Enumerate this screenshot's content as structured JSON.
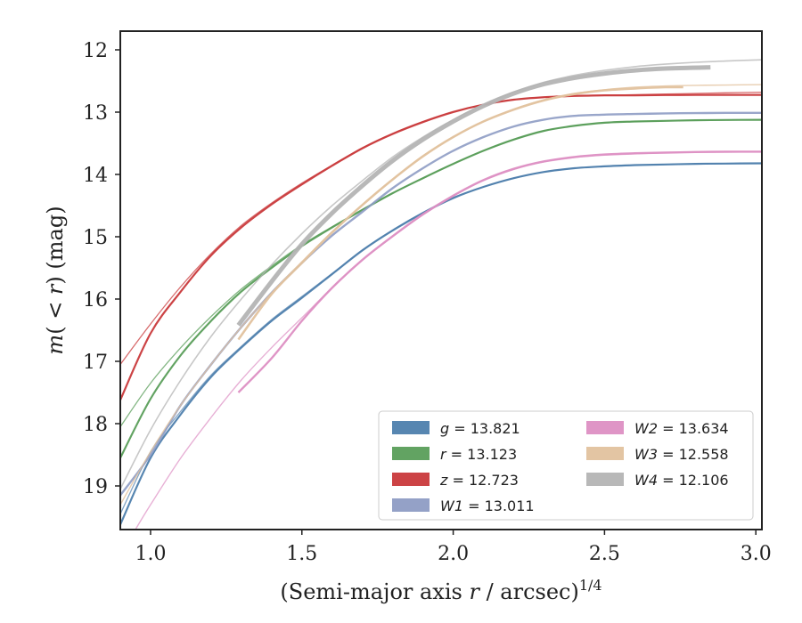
{
  "chart_data": {
    "type": "line",
    "xlabel": "(Semi-major axis r / arcsec)^{1/4}",
    "ylabel": "m(< r) (mag)",
    "xlim": [
      0.9,
      3.02
    ],
    "ylim": [
      19.7,
      11.7
    ],
    "y_inverted": true,
    "xticks": [
      "1.0",
      "1.5",
      "2.0",
      "2.5",
      "3.0"
    ],
    "yticks": [
      "12",
      "13",
      "14",
      "15",
      "16",
      "17",
      "18",
      "19"
    ],
    "legend_position": "lower-right",
    "series": [
      {
        "name": "g = 13.821",
        "legend_label": {
          "var": "g",
          "value": "13.821"
        },
        "color": "#4e7fad",
        "total": 13.821,
        "curves": [
          {
            "x": [
              0.9,
              1.0,
              1.1,
              1.2,
              1.3,
              1.4,
              1.5,
              1.6,
              1.7,
              1.8,
              1.9,
              2.0,
              2.1,
              2.2,
              2.3,
              2.4,
              2.5,
              2.6,
              2.7,
              2.8,
              2.9,
              3.02
            ],
            "y": [
              19.62,
              18.55,
              17.85,
              17.25,
              16.78,
              16.35,
              15.98,
              15.6,
              15.22,
              14.9,
              14.62,
              14.38,
              14.2,
              14.06,
              13.96,
              13.9,
              13.87,
              13.85,
              13.84,
              13.83,
              13.825,
              13.821
            ],
            "width": 2.2,
            "opacity": 0.95
          },
          {
            "x": [
              0.9,
              1.0,
              1.1,
              1.2,
              1.3,
              1.4,
              1.5,
              1.6,
              1.7,
              1.8,
              1.9,
              2.0,
              2.1,
              2.2,
              2.3,
              2.4,
              2.5,
              2.6,
              2.7,
              2.8,
              2.9,
              3.02
            ],
            "y": [
              19.45,
              18.45,
              17.8,
              17.22,
              16.76,
              16.33,
              15.96,
              15.59,
              15.21,
              14.89,
              14.61,
              14.37,
              14.2,
              14.06,
              13.96,
              13.9,
              13.87,
              13.85,
              13.84,
              13.83,
              13.825,
              13.821
            ],
            "width": 1.3,
            "opacity": 0.7
          }
        ]
      },
      {
        "name": "r = 13.123",
        "legend_label": {
          "var": "r",
          "value": "13.123"
        },
        "color": "#5a9e5a",
        "total": 13.123,
        "curves": [
          {
            "x": [
              0.9,
              1.0,
              1.1,
              1.2,
              1.3,
              1.4,
              1.5,
              1.6,
              1.7,
              1.8,
              1.9,
              2.0,
              2.1,
              2.2,
              2.3,
              2.4,
              2.5,
              2.6,
              2.7,
              2.8,
              2.9,
              3.02
            ],
            "y": [
              18.55,
              17.6,
              16.9,
              16.35,
              15.88,
              15.5,
              15.15,
              14.85,
              14.57,
              14.3,
              14.06,
              13.83,
              13.62,
              13.44,
              13.3,
              13.22,
              13.17,
              13.15,
              13.14,
              13.13,
              13.125,
              13.123
            ],
            "width": 2.2,
            "opacity": 0.95
          },
          {
            "x": [
              0.9,
              1.0,
              1.1,
              1.2,
              1.3,
              1.4,
              1.5,
              1.6,
              1.7,
              1.8,
              1.9,
              2.0,
              2.1,
              2.2,
              2.3,
              2.4,
              2.5,
              2.6,
              2.7,
              2.8,
              2.9,
              3.02
            ],
            "y": [
              18.05,
              17.35,
              16.78,
              16.28,
              15.84,
              15.47,
              15.13,
              14.84,
              14.56,
              14.3,
              14.06,
              13.83,
              13.62,
              13.44,
              13.3,
              13.22,
              13.17,
              13.15,
              13.14,
              13.13,
              13.125,
              13.123
            ],
            "width": 1.3,
            "opacity": 0.75
          }
        ]
      },
      {
        "name": "z = 12.723",
        "legend_label": {
          "var": "z",
          "value": "12.723"
        },
        "color": "#c9393b",
        "total": 12.723,
        "curves": [
          {
            "x": [
              0.9,
              1.0,
              1.1,
              1.2,
              1.3,
              1.4,
              1.5,
              1.6,
              1.7,
              1.8,
              1.9,
              2.0,
              2.1,
              2.2,
              2.3,
              2.4,
              2.5,
              2.6,
              2.7,
              2.8,
              2.9,
              3.02
            ],
            "y": [
              17.62,
              16.55,
              15.88,
              15.3,
              14.85,
              14.48,
              14.16,
              13.86,
              13.58,
              13.35,
              13.16,
              13.0,
              12.88,
              12.8,
              12.76,
              12.74,
              12.73,
              12.73,
              12.725,
              12.724,
              12.723,
              12.723
            ],
            "width": 2.2,
            "opacity": 0.95
          },
          {
            "x": [
              0.9,
              1.0,
              1.1,
              1.2,
              1.3,
              1.4,
              1.5,
              1.6,
              1.7,
              1.8,
              1.9,
              2.0,
              2.1,
              2.2,
              2.3,
              2.4,
              2.5,
              2.6,
              2.7,
              2.8,
              2.9,
              3.02
            ],
            "y": [
              17.05,
              16.4,
              15.8,
              15.27,
              14.82,
              14.46,
              14.14,
              13.85,
              13.57,
              13.34,
              13.15,
              12.99,
              12.88,
              12.8,
              12.76,
              12.74,
              12.73,
              12.72,
              12.71,
              12.7,
              12.69,
              12.68
            ],
            "width": 1.3,
            "opacity": 0.75
          }
        ]
      },
      {
        "name": "W1 = 13.011",
        "legend_label": {
          "var": "W1",
          "value": "13.011"
        },
        "color": "#8e9cc4",
        "total": 13.011,
        "curves": [
          {
            "x": [
              0.9,
              1.0,
              1.1,
              1.2,
              1.3,
              1.4,
              1.5,
              1.6,
              1.7,
              1.8,
              1.9,
              2.0,
              2.1,
              2.2,
              2.3,
              2.4,
              2.5,
              2.6,
              2.7,
              2.8,
              2.9,
              3.02
            ],
            "y": [
              19.15,
              18.5,
              17.7,
              17.05,
              16.45,
              15.9,
              15.42,
              14.98,
              14.6,
              14.22,
              13.9,
              13.62,
              13.4,
              13.23,
              13.12,
              13.06,
              13.04,
              13.03,
              13.02,
              13.015,
              13.012,
              13.011
            ],
            "width": 2.4,
            "opacity": 0.9
          }
        ]
      },
      {
        "name": "W2 = 13.634",
        "legend_label": {
          "var": "W2",
          "value": "13.634"
        },
        "color": "#dd8fc3",
        "total": 13.634,
        "curves": [
          {
            "x": [
              0.95,
              1.0,
              1.1,
              1.2,
              1.3,
              1.4,
              1.5,
              1.6,
              1.7,
              1.8,
              1.9,
              2.0,
              2.1,
              2.2,
              2.3,
              2.4,
              2.5,
              2.6,
              2.7,
              2.8,
              2.9,
              3.02
            ],
            "y": [
              19.7,
              19.3,
              18.55,
              17.9,
              17.3,
              16.78,
              16.3,
              15.82,
              15.38,
              15.0,
              14.65,
              14.35,
              14.1,
              13.92,
              13.8,
              13.73,
              13.69,
              13.67,
              13.65,
              13.64,
              13.635,
              13.634
            ],
            "width": 1.4,
            "opacity": 0.7
          },
          {
            "x": [
              1.29,
              1.4,
              1.5,
              1.6,
              1.7,
              1.8,
              1.9,
              2.0,
              2.1,
              2.2,
              2.3,
              2.4,
              2.5,
              2.6,
              2.7,
              2.8,
              2.9,
              3.02
            ],
            "y": [
              17.5,
              16.95,
              16.35,
              15.82,
              15.37,
              14.99,
              14.64,
              14.34,
              14.09,
              13.91,
              13.79,
              13.72,
              13.68,
              13.66,
              13.65,
              13.64,
              13.635,
              13.634
            ],
            "width": 2.4,
            "opacity": 0.95
          }
        ]
      },
      {
        "name": "W3 = 12.558",
        "legend_label": {
          "var": "W3",
          "value": "12.558"
        },
        "color": "#e2c29e",
        "total": 12.558,
        "curves": [
          {
            "x": [
              0.9,
              1.0,
              1.1,
              1.2,
              1.3,
              1.4,
              1.5,
              1.6,
              1.7,
              1.8,
              1.9,
              2.0,
              2.1,
              2.2,
              2.3,
              2.4,
              2.5,
              2.6,
              2.7,
              2.8,
              2.9,
              3.02
            ],
            "y": [
              19.3,
              18.45,
              17.7,
              17.05,
              16.45,
              15.9,
              15.4,
              14.92,
              14.48,
              14.08,
              13.7,
              13.4,
              13.15,
              12.95,
              12.8,
              12.7,
              12.64,
              12.6,
              12.58,
              12.57,
              12.565,
              12.558
            ],
            "width": 1.4,
            "opacity": 0.8
          },
          {
            "x": [
              1.29,
              1.4,
              1.5,
              1.6,
              1.7,
              1.8,
              1.9,
              2.0,
              2.1,
              2.2,
              2.3,
              2.4,
              2.5,
              2.6,
              2.7,
              2.76
            ],
            "y": [
              16.65,
              15.92,
              15.42,
              14.93,
              14.49,
              14.08,
              13.71,
              13.4,
              13.15,
              12.96,
              12.81,
              12.71,
              12.65,
              12.62,
              12.6,
              12.6
            ],
            "width": 2.6,
            "opacity": 0.95
          }
        ]
      },
      {
        "name": "W4 = 12.106",
        "legend_label": {
          "var": "W4",
          "value": "12.106"
        },
        "color": "#b4b4b4",
        "total": 12.106,
        "curves": [
          {
            "x": [
              0.9,
              1.0,
              1.1,
              1.2,
              1.3,
              1.4,
              1.5,
              1.6,
              1.7,
              1.8,
              1.9,
              2.0,
              2.1,
              2.2,
              2.3,
              2.4,
              2.5,
              2.6,
              2.7,
              2.8,
              2.9,
              3.02
            ],
            "y": [
              19.05,
              18.1,
              17.3,
              16.6,
              16.0,
              15.45,
              14.95,
              14.5,
              14.1,
              13.72,
              13.4,
              13.12,
              12.88,
              12.68,
              12.52,
              12.41,
              12.33,
              12.27,
              12.23,
              12.2,
              12.18,
              12.16
            ],
            "width": 1.6,
            "opacity": 0.75
          },
          {
            "x": [
              1.29,
              1.4,
              1.5,
              1.6,
              1.7,
              1.8,
              1.9,
              2.0,
              2.1,
              2.2,
              2.3,
              2.4,
              2.5,
              2.6,
              2.7,
              2.85
            ],
            "y": [
              16.42,
              15.72,
              15.12,
              14.62,
              14.18,
              13.78,
              13.44,
              13.15,
              12.9,
              12.7,
              12.55,
              12.45,
              12.38,
              12.33,
              12.3,
              12.28
            ],
            "width": 5,
            "opacity": 0.95
          }
        ]
      }
    ]
  }
}
